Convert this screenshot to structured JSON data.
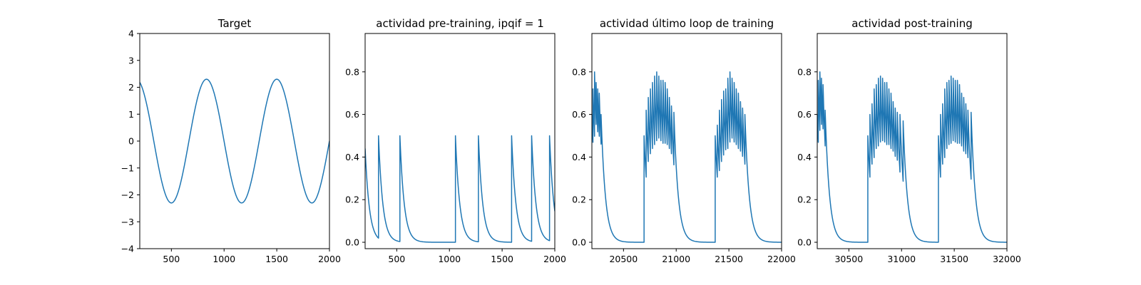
{
  "figure": {
    "background": "#ffffff",
    "line_color": "#1f77b4"
  },
  "chart_data": [
    {
      "type": "line",
      "title": "Target",
      "xlabel": "",
      "ylabel": "",
      "xlim": [
        200,
        2000
      ],
      "ylim": [
        -4,
        4
      ],
      "xticks": [
        500,
        1000,
        1500,
        2000
      ],
      "yticks": [
        -4,
        -3,
        -2,
        -1,
        0,
        1,
        2,
        3,
        4
      ],
      "xtick_labels": [
        "500",
        "1000",
        "1500",
        "2000"
      ],
      "ytick_labels": [
        "−4",
        "−3",
        "−2",
        "−1",
        "0",
        "1",
        "2",
        "3",
        "4"
      ],
      "grid": false,
      "series": [
        {
          "kind": "sine",
          "amplitude": 2.3,
          "period": 666.7,
          "peak_at": 833,
          "x_start": 200,
          "x_end": 2000
        }
      ]
    },
    {
      "type": "line",
      "title": "actividad pre-training, ipqif = 1",
      "xlabel": "",
      "ylabel": "",
      "xlim": [
        200,
        2000
      ],
      "ylim": [
        -0.03,
        0.98
      ],
      "xticks": [
        500,
        1000,
        1500,
        2000
      ],
      "yticks": [
        0.0,
        0.2,
        0.4,
        0.6,
        0.8
      ],
      "xtick_labels": [
        "500",
        "1000",
        "1500",
        "2000"
      ],
      "ytick_labels": [
        "0.0",
        "0.2",
        "0.4",
        "0.6",
        "0.8"
      ],
      "grid": false,
      "series": [
        {
          "kind": "spikes",
          "x_start": 200,
          "x_end": 2000,
          "initial_value": 0.44,
          "spikes": [
            [
              327,
              0.5
            ],
            [
              530,
              0.5
            ],
            [
              1057,
              0.5
            ],
            [
              1275,
              0.5
            ],
            [
              1590,
              0.5
            ],
            [
              1780,
              0.5
            ],
            [
              1950,
              0.5
            ]
          ]
        }
      ]
    },
    {
      "type": "line",
      "title": "actividad último loop de training",
      "xlabel": "",
      "ylabel": "",
      "xlim": [
        20200,
        22000
      ],
      "ylim": [
        -0.03,
        0.98
      ],
      "xticks": [
        20500,
        21000,
        21500,
        22000
      ],
      "yticks": [
        0.0,
        0.2,
        0.4,
        0.6,
        0.8
      ],
      "xtick_labels": [
        "20500",
        "21000",
        "21500",
        "22000"
      ],
      "ytick_labels": [
        "0.0",
        "0.2",
        "0.4",
        "0.6",
        "0.8"
      ],
      "grid": false,
      "series": [
        {
          "kind": "spikes",
          "x_start": 20200,
          "x_end": 22000,
          "initial_value": 0.6,
          "spikes": [
            [
              20210,
              0.72
            ],
            [
              20225,
              0.8
            ],
            [
              20240,
              0.75
            ],
            [
              20255,
              0.72
            ],
            [
              20270,
              0.7
            ],
            [
              20287,
              0.6
            ],
            [
              20695,
              0.5
            ],
            [
              20715,
              0.62
            ],
            [
              20735,
              0.68
            ],
            [
              20755,
              0.72
            ],
            [
              20775,
              0.75
            ],
            [
              20795,
              0.78
            ],
            [
              20815,
              0.8
            ],
            [
              20835,
              0.78
            ],
            [
              20855,
              0.76
            ],
            [
              20875,
              0.76
            ],
            [
              20895,
              0.75
            ],
            [
              20915,
              0.72
            ],
            [
              20935,
              0.68
            ],
            [
              20955,
              0.64
            ],
            [
              20978,
              0.61
            ],
            [
              21370,
              0.5
            ],
            [
              21390,
              0.55
            ],
            [
              21410,
              0.62
            ],
            [
              21430,
              0.67
            ],
            [
              21450,
              0.71
            ],
            [
              21470,
              0.72
            ],
            [
              21490,
              0.77
            ],
            [
              21510,
              0.8
            ],
            [
              21530,
              0.77
            ],
            [
              21550,
              0.75
            ],
            [
              21570,
              0.72
            ],
            [
              21590,
              0.7
            ],
            [
              21610,
              0.66
            ],
            [
              21630,
              0.63
            ],
            [
              21652,
              0.6
            ]
          ]
        }
      ]
    },
    {
      "type": "line",
      "title": "actividad post-training",
      "xlabel": "",
      "ylabel": "",
      "xlim": [
        30200,
        32000
      ],
      "ylim": [
        -0.03,
        0.98
      ],
      "xticks": [
        30500,
        31000,
        31500,
        32000
      ],
      "yticks": [
        0.0,
        0.2,
        0.4,
        0.6,
        0.8
      ],
      "xtick_labels": [
        "30500",
        "31000",
        "31500",
        "32000"
      ],
      "ytick_labels": [
        "0.0",
        "0.2",
        "0.4",
        "0.6",
        "0.8"
      ],
      "grid": false,
      "series": [
        {
          "kind": "spikes",
          "x_start": 30200,
          "x_end": 32000,
          "initial_value": 0.6,
          "spikes": [
            [
              30210,
              0.76
            ],
            [
              30225,
              0.8
            ],
            [
              30240,
              0.77
            ],
            [
              30255,
              0.74
            ],
            [
              30275,
              0.62
            ],
            [
              30680,
              0.5
            ],
            [
              30700,
              0.6
            ],
            [
              30720,
              0.65
            ],
            [
              30740,
              0.72
            ],
            [
              30760,
              0.74
            ],
            [
              30780,
              0.77
            ],
            [
              30800,
              0.78
            ],
            [
              30820,
              0.77
            ],
            [
              30840,
              0.75
            ],
            [
              30860,
              0.75
            ],
            [
              30880,
              0.72
            ],
            [
              30900,
              0.7
            ],
            [
              30920,
              0.66
            ],
            [
              30940,
              0.63
            ],
            [
              30960,
              0.61
            ],
            [
              30985,
              0.6
            ],
            [
              31015,
              0.57
            ],
            [
              31350,
              0.5
            ],
            [
              31370,
              0.6
            ],
            [
              31390,
              0.65
            ],
            [
              31410,
              0.72
            ],
            [
              31430,
              0.75
            ],
            [
              31450,
              0.76
            ],
            [
              31470,
              0.78
            ],
            [
              31490,
              0.77
            ],
            [
              31510,
              0.76
            ],
            [
              31530,
              0.76
            ],
            [
              31550,
              0.74
            ],
            [
              31570,
              0.7
            ],
            [
              31590,
              0.68
            ],
            [
              31610,
              0.65
            ],
            [
              31630,
              0.62
            ],
            [
              31660,
              0.61
            ]
          ]
        }
      ]
    }
  ]
}
